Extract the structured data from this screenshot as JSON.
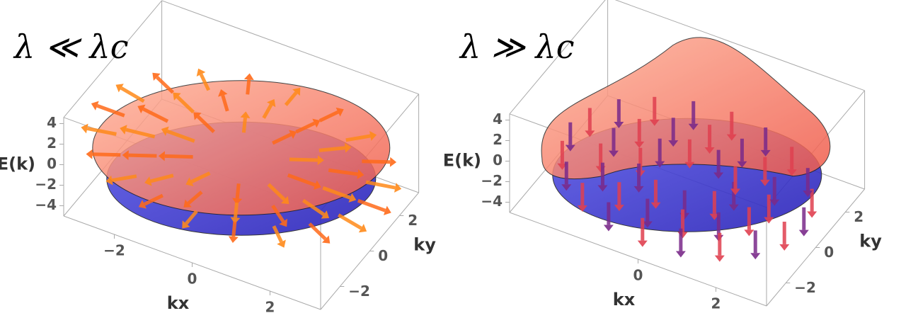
{
  "chart_data": [
    {
      "type": "surface3d",
      "title": "λ ≪ λc",
      "xlabel": "kx",
      "ylabel": "ky",
      "zlabel": "E(k)",
      "xlim": [
        -3.3,
        3.3
      ],
      "ylim": [
        -3.3,
        3.3
      ],
      "zlim": [
        -5,
        4.6
      ],
      "xticks": [
        {
          "value": -2,
          "label": "−2"
        },
        0,
        2
      ],
      "yticks": [
        {
          "value": -2,
          "label": "−2"
        },
        0,
        2
      ],
      "zticks": [
        {
          "value": -4,
          "label": "−4"
        },
        {
          "value": -2,
          "label": "−2"
        },
        0,
        2,
        4
      ]
    },
    {
      "type": "surface3d",
      "title": "λ ≫ λc",
      "xlabel": "kx",
      "ylabel": "ky",
      "zlabel": "E(k)",
      "xlim": [
        -3.3,
        3.3
      ],
      "ylim": [
        -3.3,
        3.3
      ],
      "zlim": [
        -5,
        4.6
      ],
      "xticks": [
        0,
        2
      ],
      "yticks": [
        {
          "value": -2,
          "label": "−2"
        },
        0,
        2
      ],
      "zticks": [
        {
          "value": -4,
          "label": "−4"
        },
        {
          "value": -2,
          "label": "−2"
        },
        0,
        2,
        4
      ]
    }
  ]
}
